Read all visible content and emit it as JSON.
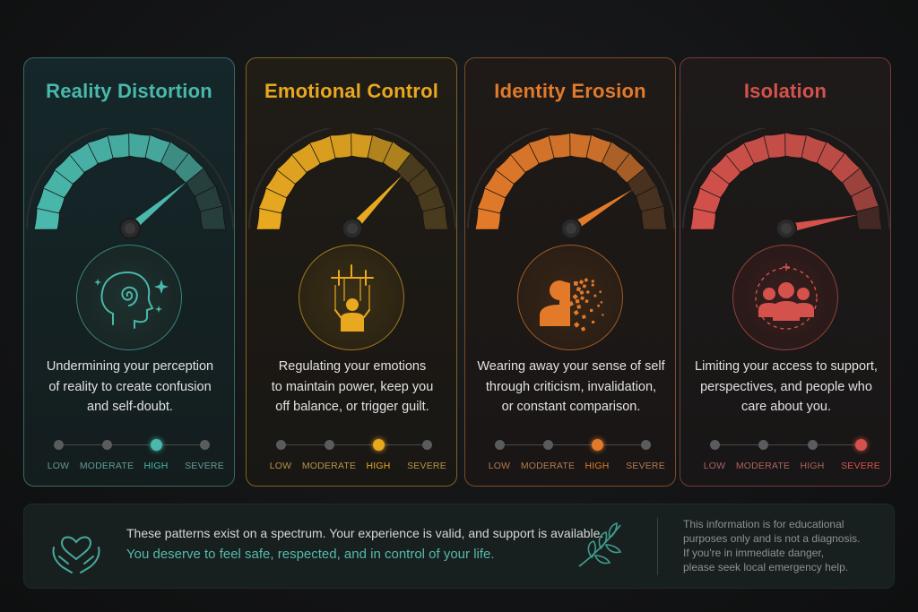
{
  "cards": [
    {
      "title": "Reality Distortion",
      "color": "#4ab8ac",
      "description": [
        "Undermining your perception",
        "of reality to create confusion",
        "and self-doubt."
      ],
      "level": 0.78,
      "active_level": 2,
      "icon": "head-spiral-icon",
      "scale": [
        "LOW",
        "MODERATE",
        "HIGH",
        "SEVERE"
      ]
    },
    {
      "title": "Emotional Control",
      "color": "#e8a820",
      "description": [
        "Regulating your emotions",
        "to maintain power, keep you",
        "off balance, or trigger guilt."
      ],
      "level": 0.74,
      "active_level": 2,
      "icon": "puppet-strings-icon",
      "scale": [
        "LOW",
        "MODERATE",
        "HIGH",
        "SEVERE"
      ]
    },
    {
      "title": "Identity Erosion",
      "color": "#e27a2a",
      "description": [
        "Wearing away your sense of self",
        "through criticism, invalidation,",
        "or constant comparison."
      ],
      "level": 0.82,
      "active_level": 2,
      "icon": "dissolving-person-icon",
      "scale": [
        "LOW",
        "MODERATE",
        "HIGH",
        "SEVERE"
      ]
    },
    {
      "title": "Isolation",
      "color": "#d4524b",
      "description": [
        "Limiting your access to support,",
        "perspectives, and people who",
        "care about you."
      ],
      "level": 0.94,
      "active_level": 3,
      "icon": "group-people-icon",
      "scale": [
        "LOW",
        "MODERATE",
        "HIGH",
        "SEVERE"
      ]
    }
  ],
  "banner": {
    "icon": "heart-hands-icon",
    "leaf_icon": "leaf-branch-icon",
    "line1": "These patterns exist on a spectrum. Your experience is valid, and support is available.",
    "line2": "You deserve to feel safe, respected, and in control of your life.",
    "disclaimer": [
      "This information is for educational",
      "purposes only and is not a diagnosis.",
      "If you're in immediate danger,",
      "please seek local emergency help."
    ]
  }
}
